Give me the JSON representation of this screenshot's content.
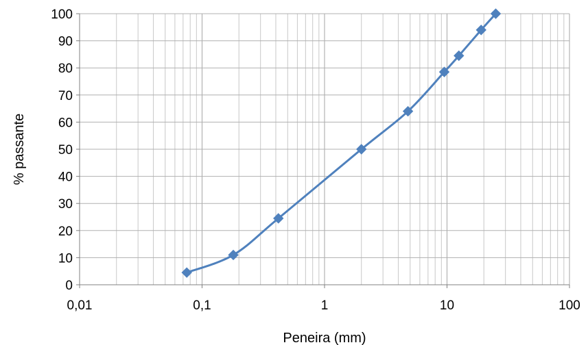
{
  "chart_data": {
    "type": "line",
    "title": "",
    "xlabel": "Peneira (mm)",
    "ylabel": "% passante",
    "x_scale": "log",
    "xlim": [
      0.01,
      100
    ],
    "ylim": [
      0,
      100
    ],
    "x_ticks": [
      "0,01",
      "0,1",
      "1",
      "10",
      "100"
    ],
    "y_ticks": [
      "0",
      "10",
      "20",
      "30",
      "40",
      "50",
      "60",
      "70",
      "80",
      "90",
      "100"
    ],
    "grid": true,
    "legend": "none",
    "marker": "diamond",
    "color": "#4F81BD",
    "series": [
      {
        "x": [
          0.075,
          0.18,
          0.42,
          2.0,
          4.8,
          9.5,
          12.5,
          19.0,
          25.0
        ],
        "y": [
          4.5,
          11,
          24.5,
          50,
          64,
          78.5,
          84.5,
          94,
          100
        ]
      }
    ]
  }
}
